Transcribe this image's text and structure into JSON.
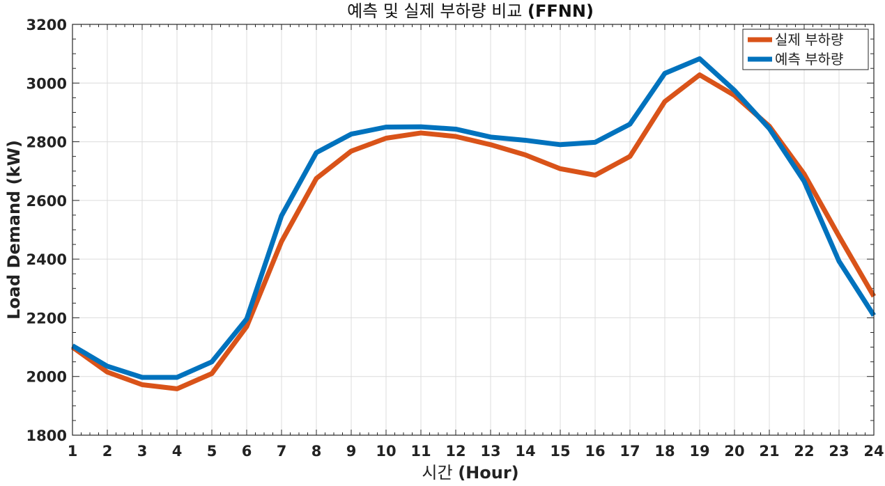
{
  "chart_data": {
    "type": "line",
    "title": "예측 및 실제 부하량 비교",
    "title_suffix": "(FFNN)",
    "xlabel": "시간",
    "xlabel_suffix": "(Hour)",
    "ylabel": "Load Demand (kW)",
    "x": [
      1,
      2,
      3,
      4,
      5,
      6,
      7,
      8,
      9,
      10,
      11,
      12,
      13,
      14,
      15,
      16,
      17,
      18,
      19,
      20,
      21,
      22,
      23,
      24
    ],
    "xlim": [
      1,
      24
    ],
    "ylim": [
      1800,
      3200
    ],
    "yticks": [
      1800,
      2000,
      2200,
      2400,
      2600,
      2800,
      3000,
      3200
    ],
    "grid": true,
    "legend_position": "top-right",
    "series": [
      {
        "name": "실제 부하량",
        "color": "#D95319",
        "values": [
          2100,
          2015,
          1972,
          1958,
          2010,
          2170,
          2460,
          2675,
          2768,
          2812,
          2830,
          2818,
          2790,
          2755,
          2708,
          2686,
          2750,
          2937,
          3028,
          2958,
          2853,
          2690,
          2478,
          2273
        ]
      },
      {
        "name": "예측 부하량",
        "color": "#0072BD",
        "values": [
          2105,
          2035,
          1997,
          1997,
          2050,
          2196,
          2548,
          2763,
          2826,
          2850,
          2851,
          2843,
          2816,
          2805,
          2790,
          2798,
          2860,
          3033,
          3083,
          2975,
          2845,
          2665,
          2393,
          2208
        ]
      }
    ]
  }
}
